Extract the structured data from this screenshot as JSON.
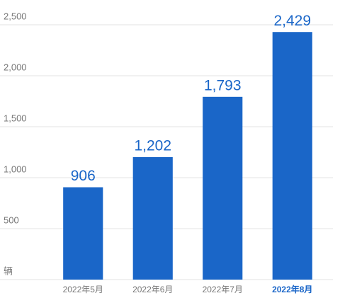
{
  "chart_data": {
    "type": "bar",
    "categories": [
      "2022年5月",
      "2022年6月",
      "2022年7月",
      "2022年8月"
    ],
    "values": [
      906,
      1202,
      1793,
      2429
    ],
    "value_labels": [
      "906",
      "1,202",
      "1,793",
      "2,429"
    ],
    "color": "#1a66c8",
    "ylim": [
      0,
      2500
    ],
    "yticks": [
      {
        "value": 0,
        "label": "辆"
      },
      500,
      {
        "value": 1000,
        "label": "1,000"
      },
      {
        "value": 1500,
        "label": "1,500"
      },
      {
        "value": 2000,
        "label": "2,000"
      },
      {
        "value": 2500,
        "label": "2,500"
      }
    ],
    "grid": true
  }
}
